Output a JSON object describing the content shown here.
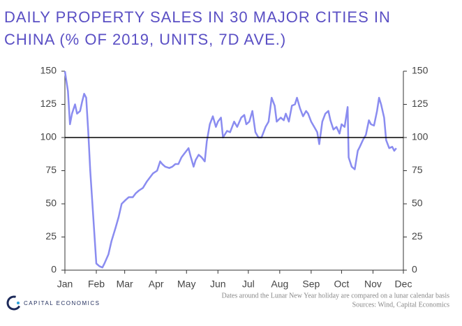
{
  "chart_data": {
    "type": "line",
    "title": [
      "DAILY PROPERTY SALES IN 30 MAJOR CITIES IN",
      "CHINA (% OF 2019, UNITS, 7D AVE.)"
    ],
    "x": [
      0,
      3,
      5,
      7,
      10,
      12,
      15,
      17,
      19,
      21,
      23,
      25,
      28,
      31,
      34,
      37,
      39,
      43,
      46,
      50,
      53,
      56,
      60,
      63,
      67,
      70,
      73,
      77,
      81,
      84,
      87,
      91,
      94,
      96,
      99,
      103,
      106,
      109,
      112,
      115,
      118,
      122,
      124,
      127,
      129,
      132,
      135,
      138,
      140,
      143,
      146,
      149,
      151,
      154,
      156,
      160,
      163,
      167,
      170,
      174,
      177,
      179,
      182,
      185,
      188,
      191,
      194,
      198,
      201,
      204,
      207,
      209,
      213,
      216,
      218,
      221,
      224,
      227,
      229,
      232,
      235,
      238,
      240,
      243,
      246,
      249,
      251,
      254,
      257,
      260,
      262,
      265,
      268,
      271,
      273,
      276,
      279,
      280,
      283,
      286,
      289,
      291,
      294,
      297,
      300,
      302,
      305,
      308,
      310,
      312,
      315,
      317,
      320,
      323,
      325,
      327
    ],
    "series": [
      {
        "color": "#8a8cf0",
        "values": [
          150,
          135,
          110,
          118,
          125,
          118,
          120,
          127,
          133,
          130,
          105,
          75,
          40,
          5,
          3,
          2,
          5,
          12,
          22,
          32,
          40,
          50,
          53,
          55,
          55,
          58,
          60,
          62,
          67,
          70,
          73,
          75,
          82,
          80,
          78,
          77,
          78,
          80,
          80,
          85,
          88,
          92,
          86,
          78,
          83,
          87,
          85,
          82,
          97,
          110,
          116,
          108,
          112,
          115,
          100,
          105,
          104,
          112,
          108,
          115,
          117,
          110,
          112,
          120,
          104,
          100,
          100,
          108,
          112,
          130,
          124,
          112,
          115,
          113,
          118,
          112,
          124,
          125,
          130,
          122,
          116,
          120,
          118,
          112,
          108,
          104,
          95,
          112,
          118,
          120,
          113,
          106,
          108,
          103,
          110,
          108,
          123,
          85,
          78,
          76,
          90,
          93,
          98,
          102,
          113,
          110,
          109,
          120,
          130,
          125,
          115,
          98,
          92,
          93,
          90,
          92
        ]
      }
    ],
    "xlim": [
      0,
      334
    ],
    "xticks": [
      {
        "value": 0,
        "label": "Jan"
      },
      {
        "value": 31,
        "label": "Feb"
      },
      {
        "value": 59,
        "label": "Mar"
      },
      {
        "value": 90,
        "label": "Apr"
      },
      {
        "value": 120,
        "label": "May"
      },
      {
        "value": 151,
        "label": "Jun"
      },
      {
        "value": 181,
        "label": "Jul"
      },
      {
        "value": 212,
        "label": "Aug"
      },
      {
        "value": 243,
        "label": "Sep"
      },
      {
        "value": 273,
        "label": "Oct"
      },
      {
        "value": 304,
        "label": "Nov"
      },
      {
        "value": 334,
        "label": "Dec"
      }
    ],
    "ylim": [
      0,
      150
    ],
    "yticks": [
      0,
      25,
      50,
      75,
      100,
      125,
      150
    ],
    "reference_line": 100,
    "note": [
      "Dates around the Lunar New Year holiday are compared on a lunar calendar basis",
      "Sources: Wind, Capital Economics"
    ],
    "logo": "CAPITAL ECONOMICS"
  }
}
